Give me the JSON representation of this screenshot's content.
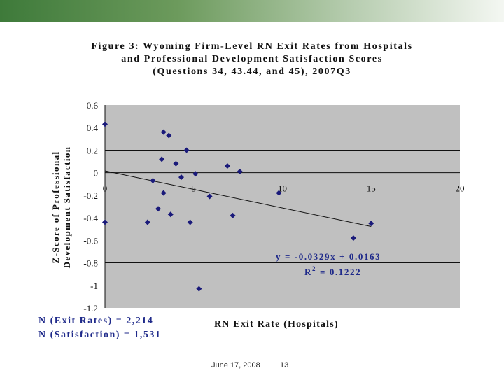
{
  "slide": {
    "title_line1": "Figure 3: Wyoming Firm-Level RN Exit Rates from Hospitals",
    "title_line2": "and Professional Development Satisfaction Scores",
    "title_line3": "(Questions 34, 43.44, and 45), 2007Q3",
    "ylabel_line1": "Z-Score of Professional",
    "ylabel_line2": "Development Satisfaction",
    "xlabel": "RN Exit Rate (Hospitals)",
    "n_exit": "N (Exit Rates) = 2,214",
    "n_satisfaction": "N (Satisfaction) = 1,531",
    "footer_date": "June 17, 2008",
    "footer_page": "13"
  },
  "chart_data": {
    "type": "scatter",
    "title": "Figure 3: Wyoming Firm-Level RN Exit Rates from Hospitals and Professional Development Satisfaction Scores (Questions 34, 43.44, and 45), 2007Q3",
    "xlabel": "RN Exit Rate (Hospitals)",
    "ylabel": "Z-Score of Professional Development Satisfaction",
    "xlim": [
      0,
      20
    ],
    "ylim": [
      -1.2,
      0.6
    ],
    "x_ticks": [
      0,
      5,
      10,
      15,
      20
    ],
    "x_tick_labels": [
      "0",
      "5",
      "10",
      "15",
      "20"
    ],
    "y_ticks": [
      0.6,
      0.4,
      0.2,
      0,
      -0.2,
      -0.4,
      -0.6,
      -0.8,
      -1,
      -1.2
    ],
    "y_tick_labels": [
      "0.6",
      "0.4",
      "0.2",
      "0",
      "-0.2",
      "-0.4",
      "-0.6",
      "-0.8",
      "-1",
      "-1.2"
    ],
    "grid": "horizontal lines at 0.2 and -0.8",
    "x_axis_position": "y = 0",
    "plot_background": "#c0c0c0",
    "marker_color": "#1a1a7a",
    "points": [
      {
        "x": 0.0,
        "y": 0.43
      },
      {
        "x": 0.0,
        "y": -0.44
      },
      {
        "x": 2.4,
        "y": -0.44
      },
      {
        "x": 2.7,
        "y": -0.07
      },
      {
        "x": 3.0,
        "y": -0.32
      },
      {
        "x": 3.2,
        "y": 0.12
      },
      {
        "x": 3.3,
        "y": 0.36
      },
      {
        "x": 3.3,
        "y": -0.18
      },
      {
        "x": 3.6,
        "y": 0.33
      },
      {
        "x": 3.7,
        "y": -0.37
      },
      {
        "x": 4.0,
        "y": 0.08
      },
      {
        "x": 4.3,
        "y": -0.04
      },
      {
        "x": 4.6,
        "y": 0.2
      },
      {
        "x": 4.8,
        "y": -0.44
      },
      {
        "x": 5.1,
        "y": -0.01
      },
      {
        "x": 5.3,
        "y": -1.03
      },
      {
        "x": 5.9,
        "y": -0.21
      },
      {
        "x": 6.9,
        "y": 0.06
      },
      {
        "x": 7.2,
        "y": -0.38
      },
      {
        "x": 7.6,
        "y": 0.01
      },
      {
        "x": 9.8,
        "y": -0.18
      },
      {
        "x": 14.0,
        "y": -0.58
      },
      {
        "x": 15.0,
        "y": -0.45
      }
    ],
    "trendline": {
      "type": "linear",
      "slope": -0.0329,
      "intercept": 0.0163,
      "equation": "y = -0.0329x + 0.0163",
      "r2_prefix": "R",
      "r2_exponent": "2",
      "r2_value": " = 0.1222"
    }
  }
}
